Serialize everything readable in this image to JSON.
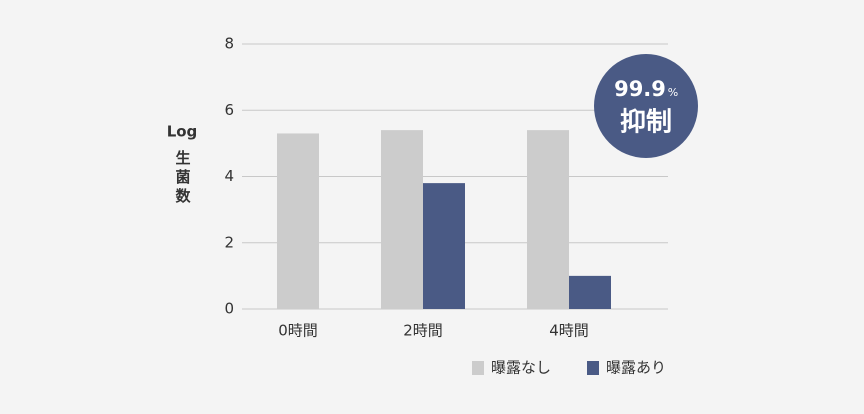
{
  "chart_data": {
    "type": "bar",
    "y_label": "Log",
    "y_label_sub": "生菌数",
    "categories": [
      "0時間",
      "2時間",
      "4時間"
    ],
    "series": [
      {
        "name": "曝露なし",
        "color": "#cccccc",
        "values": [
          5.3,
          5.4,
          5.4
        ]
      },
      {
        "name": "曝露あり",
        "color": "#4a5a85",
        "values": [
          null,
          3.8,
          1.0
        ]
      }
    ],
    "ylim": [
      0,
      8
    ],
    "yticks": [
      0,
      2,
      4,
      6,
      8
    ],
    "grid": true,
    "annotation": {
      "value": "99.9",
      "unit": "%",
      "text": "抑制",
      "color": "#4a5a85"
    }
  }
}
